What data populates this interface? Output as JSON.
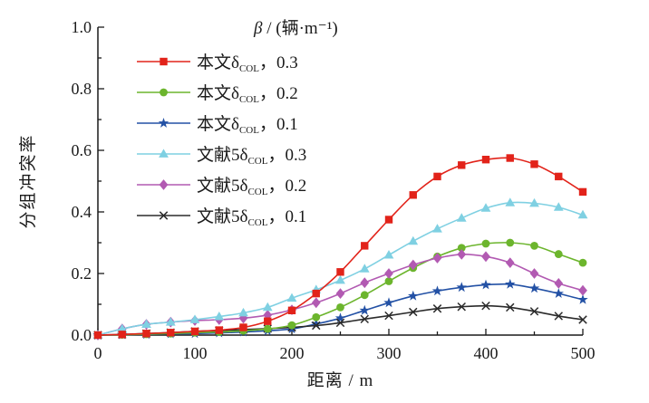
{
  "figure": {
    "xlabel": "距离 / m",
    "ylabel": "分组冲突率",
    "legend_title_symbol": "β",
    "legend_title_rest": " / (辆·m⁻¹)"
  },
  "chart_data": {
    "type": "line",
    "title": "",
    "xlabel": "距离 / m",
    "ylabel": "分组冲突率",
    "xlim": [
      0,
      500
    ],
    "ylim": [
      0,
      1.0
    ],
    "grid": false,
    "legend_position": "upper-left-inside",
    "legend_title": "β / (辆·m⁻¹)",
    "x_tick_values": [
      0,
      100,
      200,
      300,
      400,
      500
    ],
    "x_tick_labels": [
      "0",
      "100",
      "200",
      "300",
      "400",
      "500"
    ],
    "x_minor_step": 50,
    "y_tick_values": [
      0,
      0.2,
      0.4,
      0.6,
      0.8,
      1.0
    ],
    "y_tick_labels": [
      "0.0",
      "0.2",
      "0.4",
      "0.6",
      "0.8",
      "1.0"
    ],
    "y_minor_step": 0.1,
    "x": [
      0,
      25,
      50,
      75,
      100,
      125,
      150,
      175,
      200,
      225,
      250,
      275,
      300,
      325,
      350,
      375,
      400,
      425,
      450,
      475,
      500
    ],
    "series": [
      {
        "label_prefix": "本文δ",
        "label_sub": "COL",
        "label_suffix": "，0.3",
        "color": "#e2231a",
        "marker": "square",
        "values": [
          0,
          0.002,
          0.005,
          0.008,
          0.012,
          0.016,
          0.025,
          0.045,
          0.08,
          0.135,
          0.205,
          0.29,
          0.375,
          0.455,
          0.515,
          0.552,
          0.57,
          0.575,
          0.555,
          0.515,
          0.465
        ]
      },
      {
        "label_prefix": "本文δ",
        "label_sub": "COL",
        "label_suffix": "，0.2",
        "color": "#6cb52d",
        "marker": "circle",
        "values": [
          0,
          0.001,
          0.003,
          0.005,
          0.008,
          0.01,
          0.014,
          0.02,
          0.032,
          0.058,
          0.09,
          0.13,
          0.175,
          0.218,
          0.255,
          0.283,
          0.297,
          0.3,
          0.29,
          0.263,
          0.235
        ]
      },
      {
        "label_prefix": "本文δ",
        "label_sub": "COL",
        "label_suffix": "，0.1",
        "color": "#2351a5",
        "marker": "star",
        "values": [
          0,
          0.001,
          0.002,
          0.004,
          0.005,
          0.007,
          0.01,
          0.014,
          0.02,
          0.036,
          0.055,
          0.08,
          0.105,
          0.127,
          0.143,
          0.155,
          0.163,
          0.165,
          0.152,
          0.135,
          0.115
        ]
      },
      {
        "label_prefix": "文献5δ",
        "label_sub": "COL",
        "label_suffix": "，0.3",
        "color": "#7fd0e2",
        "marker": "triangle",
        "values": [
          0,
          0.02,
          0.035,
          0.042,
          0.05,
          0.06,
          0.072,
          0.09,
          0.12,
          0.147,
          0.178,
          0.215,
          0.26,
          0.305,
          0.345,
          0.38,
          0.412,
          0.43,
          0.428,
          0.415,
          0.39
        ]
      },
      {
        "label_prefix": "文献5δ",
        "label_sub": "COL",
        "label_suffix": "，0.2",
        "color": "#b25ab2",
        "marker": "diamond",
        "values": [
          0,
          0.02,
          0.035,
          0.042,
          0.047,
          0.05,
          0.055,
          0.065,
          0.082,
          0.105,
          0.135,
          0.17,
          0.2,
          0.228,
          0.25,
          0.262,
          0.255,
          0.235,
          0.2,
          0.168,
          0.145
        ]
      },
      {
        "label_prefix": "文献5δ",
        "label_sub": "COL",
        "label_suffix": "，0.1",
        "color": "#2b2b2b",
        "marker": "x",
        "values": [
          0,
          0.002,
          0.005,
          0.008,
          0.012,
          0.015,
          0.018,
          0.021,
          0.025,
          0.031,
          0.04,
          0.052,
          0.063,
          0.075,
          0.086,
          0.092,
          0.095,
          0.09,
          0.077,
          0.062,
          0.05
        ]
      }
    ]
  }
}
